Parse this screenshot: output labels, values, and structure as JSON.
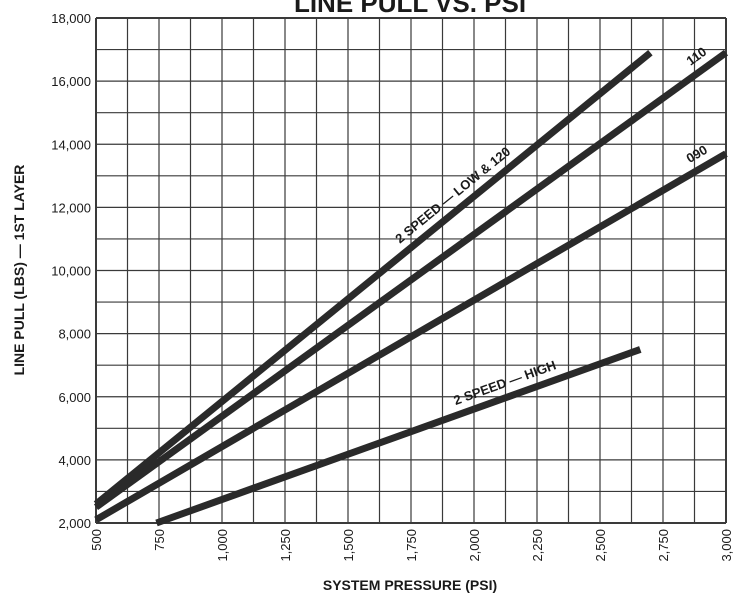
{
  "chart_data": {
    "type": "line",
    "title": "LINE PULL VS. PSI",
    "xlabel": "SYSTEM PRESSURE (PSI)",
    "ylabel": "LINE PULL (LBS) — 1ST LAYER",
    "xlim": [
      500,
      3000
    ],
    "ylim": [
      2000,
      18000
    ],
    "x_ticks": [
      "500",
      "750",
      "1,000",
      "1,250",
      "1,500",
      "1,750",
      "2,000",
      "2,250",
      "2,500",
      "2,750",
      "3,000"
    ],
    "y_ticks": [
      "2,000",
      "4,000",
      "6,000",
      "8,000",
      "10,000",
      "12,000",
      "14,000",
      "16,000",
      "18,000"
    ],
    "grid": true,
    "series": [
      {
        "name": "2 SPEED — LOW & 120",
        "x": [
          500,
          2700
        ],
        "y": [
          2600,
          16900
        ]
      },
      {
        "name": "110",
        "x": [
          500,
          3000
        ],
        "y": [
          2500,
          16900
        ]
      },
      {
        "name": "090",
        "x": [
          500,
          3000
        ],
        "y": [
          2100,
          13700
        ]
      },
      {
        "name": "2 SPEED — HIGH",
        "x": [
          740,
          2660
        ],
        "y": [
          2000,
          7500
        ]
      }
    ],
    "colors": {
      "line": "#2a2a2a",
      "grid": "#3a3a3a",
      "text": "#1a1a1a"
    }
  }
}
